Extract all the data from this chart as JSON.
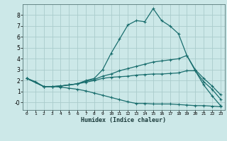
{
  "xlabel": "Humidex (Indice chaleur)",
  "xlim": [
    -0.5,
    23.5
  ],
  "ylim": [
    -0.7,
    9.0
  ],
  "bg_color": "#cce8e8",
  "grid_color": "#aacccc",
  "line_color": "#1a6e6e",
  "line1_x": [
    0,
    1,
    2,
    3,
    4,
    5,
    6,
    7,
    8,
    9,
    10,
    11,
    12,
    13,
    14,
    15,
    16,
    17,
    18,
    19,
    20,
    21,
    22,
    23
  ],
  "line1_y": [
    2.2,
    1.9,
    1.45,
    1.45,
    1.5,
    1.6,
    1.7,
    2.0,
    2.2,
    3.0,
    4.5,
    5.8,
    7.1,
    7.5,
    7.4,
    8.6,
    7.5,
    7.0,
    6.3,
    4.3,
    2.9,
    1.6,
    0.6,
    -0.3
  ],
  "line2_x": [
    0,
    2,
    3,
    4,
    5,
    6,
    7,
    8,
    9,
    10,
    11,
    12,
    13,
    14,
    15,
    16,
    17,
    18,
    19,
    20,
    21,
    22,
    23
  ],
  "line2_y": [
    2.2,
    1.45,
    1.45,
    1.5,
    1.6,
    1.7,
    1.95,
    2.1,
    2.4,
    2.6,
    2.9,
    3.1,
    3.3,
    3.5,
    3.7,
    3.8,
    3.9,
    4.0,
    4.3,
    3.0,
    2.2,
    1.5,
    0.7
  ],
  "line3_x": [
    0,
    2,
    3,
    4,
    5,
    6,
    7,
    8,
    9,
    10,
    11,
    12,
    13,
    14,
    15,
    16,
    17,
    18,
    19,
    20,
    21,
    22,
    23
  ],
  "line3_y": [
    2.2,
    1.45,
    1.45,
    1.5,
    1.6,
    1.7,
    1.85,
    2.0,
    2.2,
    2.3,
    2.35,
    2.4,
    2.5,
    2.55,
    2.6,
    2.6,
    2.65,
    2.7,
    2.9,
    2.9,
    1.9,
    1.2,
    0.3
  ],
  "line4_x": [
    0,
    2,
    3,
    4,
    5,
    6,
    7,
    8,
    9,
    10,
    11,
    12,
    13,
    14,
    15,
    16,
    17,
    18,
    19,
    20,
    21,
    22,
    23
  ],
  "line4_y": [
    2.2,
    1.45,
    1.45,
    1.4,
    1.3,
    1.2,
    1.05,
    0.85,
    0.65,
    0.45,
    0.25,
    0.05,
    -0.1,
    -0.1,
    -0.15,
    -0.15,
    -0.15,
    -0.2,
    -0.25,
    -0.3,
    -0.3,
    -0.35,
    -0.4
  ],
  "xticks": [
    0,
    1,
    2,
    3,
    4,
    5,
    6,
    7,
    8,
    9,
    10,
    11,
    12,
    13,
    14,
    15,
    16,
    17,
    18,
    19,
    20,
    21,
    22,
    23
  ],
  "yticks": [
    0,
    1,
    2,
    3,
    4,
    5,
    6,
    7,
    8
  ],
  "ytick_labels": [
    "-0",
    "1",
    "2",
    "3",
    "4",
    "5",
    "6",
    "7",
    "8"
  ]
}
